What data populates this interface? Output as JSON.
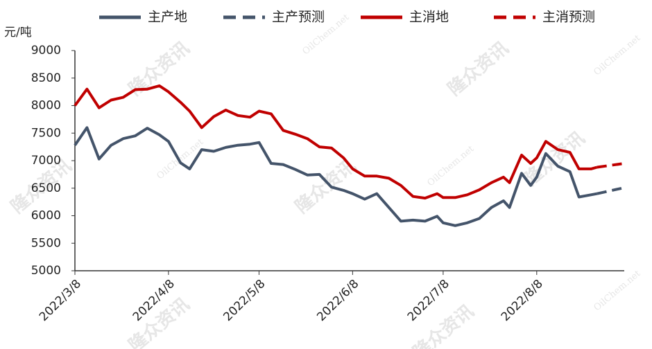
{
  "chart_data": {
    "type": "line",
    "y_label": "元/吨",
    "watermarks": [
      "隆众资讯",
      "OilChem.net"
    ],
    "x": [
      "2022/3/8",
      "2022/3/12",
      "2022/3/16",
      "2022/3/20",
      "2022/3/24",
      "2022/3/28",
      "2022/4/1",
      "2022/4/5",
      "2022/4/8",
      "2022/4/12",
      "2022/4/15",
      "2022/4/19",
      "2022/4/23",
      "2022/4/27",
      "2022/5/1",
      "2022/5/5",
      "2022/5/8",
      "2022/5/12",
      "2022/5/16",
      "2022/5/20",
      "2022/5/24",
      "2022/5/28",
      "2022/6/1",
      "2022/6/5",
      "2022/6/8",
      "2022/6/12",
      "2022/6/16",
      "2022/6/20",
      "2022/6/24",
      "2022/6/28",
      "2022/7/2",
      "2022/7/6",
      "2022/7/8",
      "2022/7/12",
      "2022/7/16",
      "2022/7/20",
      "2022/7/24",
      "2022/7/28",
      "2022/7/30",
      "2022/8/3",
      "2022/8/6",
      "2022/8/8",
      "2022/8/11",
      "2022/8/15",
      "2022/8/19",
      "2022/8/22",
      "2022/8/26",
      "2022/8/28",
      "2022/9/6"
    ],
    "series": [
      {
        "name": "主产地",
        "color": "#44546a",
        "dashed": false,
        "values": [
          7280,
          7600,
          7030,
          7280,
          7400,
          7450,
          7590,
          7470,
          7350,
          6960,
          6850,
          7200,
          7170,
          7240,
          7280,
          7300,
          7330,
          6950,
          6930,
          6840,
          6740,
          6750,
          6520,
          6460,
          6400,
          6300,
          6400,
          6150,
          5900,
          5920,
          5900,
          5990,
          5870,
          5820,
          5870,
          5950,
          6150,
          6270,
          6150,
          6770,
          6550,
          6700,
          7130,
          6900,
          6800,
          6340,
          6380,
          6400,
          null
        ]
      },
      {
        "name": "主产预测",
        "color": "#44546a",
        "dashed": true,
        "values": [
          null,
          null,
          null,
          null,
          null,
          null,
          null,
          null,
          null,
          null,
          null,
          null,
          null,
          null,
          null,
          null,
          null,
          null,
          null,
          null,
          null,
          null,
          null,
          null,
          null,
          null,
          null,
          null,
          null,
          null,
          null,
          null,
          null,
          null,
          null,
          null,
          null,
          null,
          null,
          null,
          null,
          null,
          null,
          null,
          null,
          null,
          null,
          6400,
          6510
        ]
      },
      {
        "name": "主消地",
        "color": "#c00000",
        "dashed": false,
        "values": [
          8000,
          8300,
          7960,
          8100,
          8150,
          8290,
          8300,
          8360,
          8250,
          8060,
          7900,
          7600,
          7800,
          7920,
          7820,
          7790,
          7900,
          7850,
          7550,
          7480,
          7400,
          7250,
          7230,
          7050,
          6850,
          6720,
          6720,
          6680,
          6550,
          6350,
          6320,
          6400,
          6330,
          6330,
          6380,
          6470,
          6600,
          6700,
          6600,
          7100,
          6950,
          7050,
          7350,
          7200,
          7150,
          6850,
          6850,
          6880,
          null
        ]
      },
      {
        "name": "主消预测",
        "color": "#c00000",
        "dashed": true,
        "values": [
          null,
          null,
          null,
          null,
          null,
          null,
          null,
          null,
          null,
          null,
          null,
          null,
          null,
          null,
          null,
          null,
          null,
          null,
          null,
          null,
          null,
          null,
          null,
          null,
          null,
          null,
          null,
          null,
          null,
          null,
          null,
          null,
          null,
          null,
          null,
          null,
          null,
          null,
          null,
          null,
          null,
          null,
          null,
          null,
          null,
          null,
          null,
          6880,
          6950
        ]
      }
    ],
    "xlim": [
      "2022/3/8",
      "2022/9/6"
    ],
    "xticks": [
      "2022/3/8",
      "2022/4/8",
      "2022/5/8",
      "2022/6/8",
      "2022/7/8",
      "2022/8/8"
    ],
    "ylim": [
      5000,
      9000
    ],
    "yticks": [
      5000,
      5500,
      6000,
      6500,
      7000,
      7500,
      8000,
      8500,
      9000
    ],
    "grid": false
  }
}
